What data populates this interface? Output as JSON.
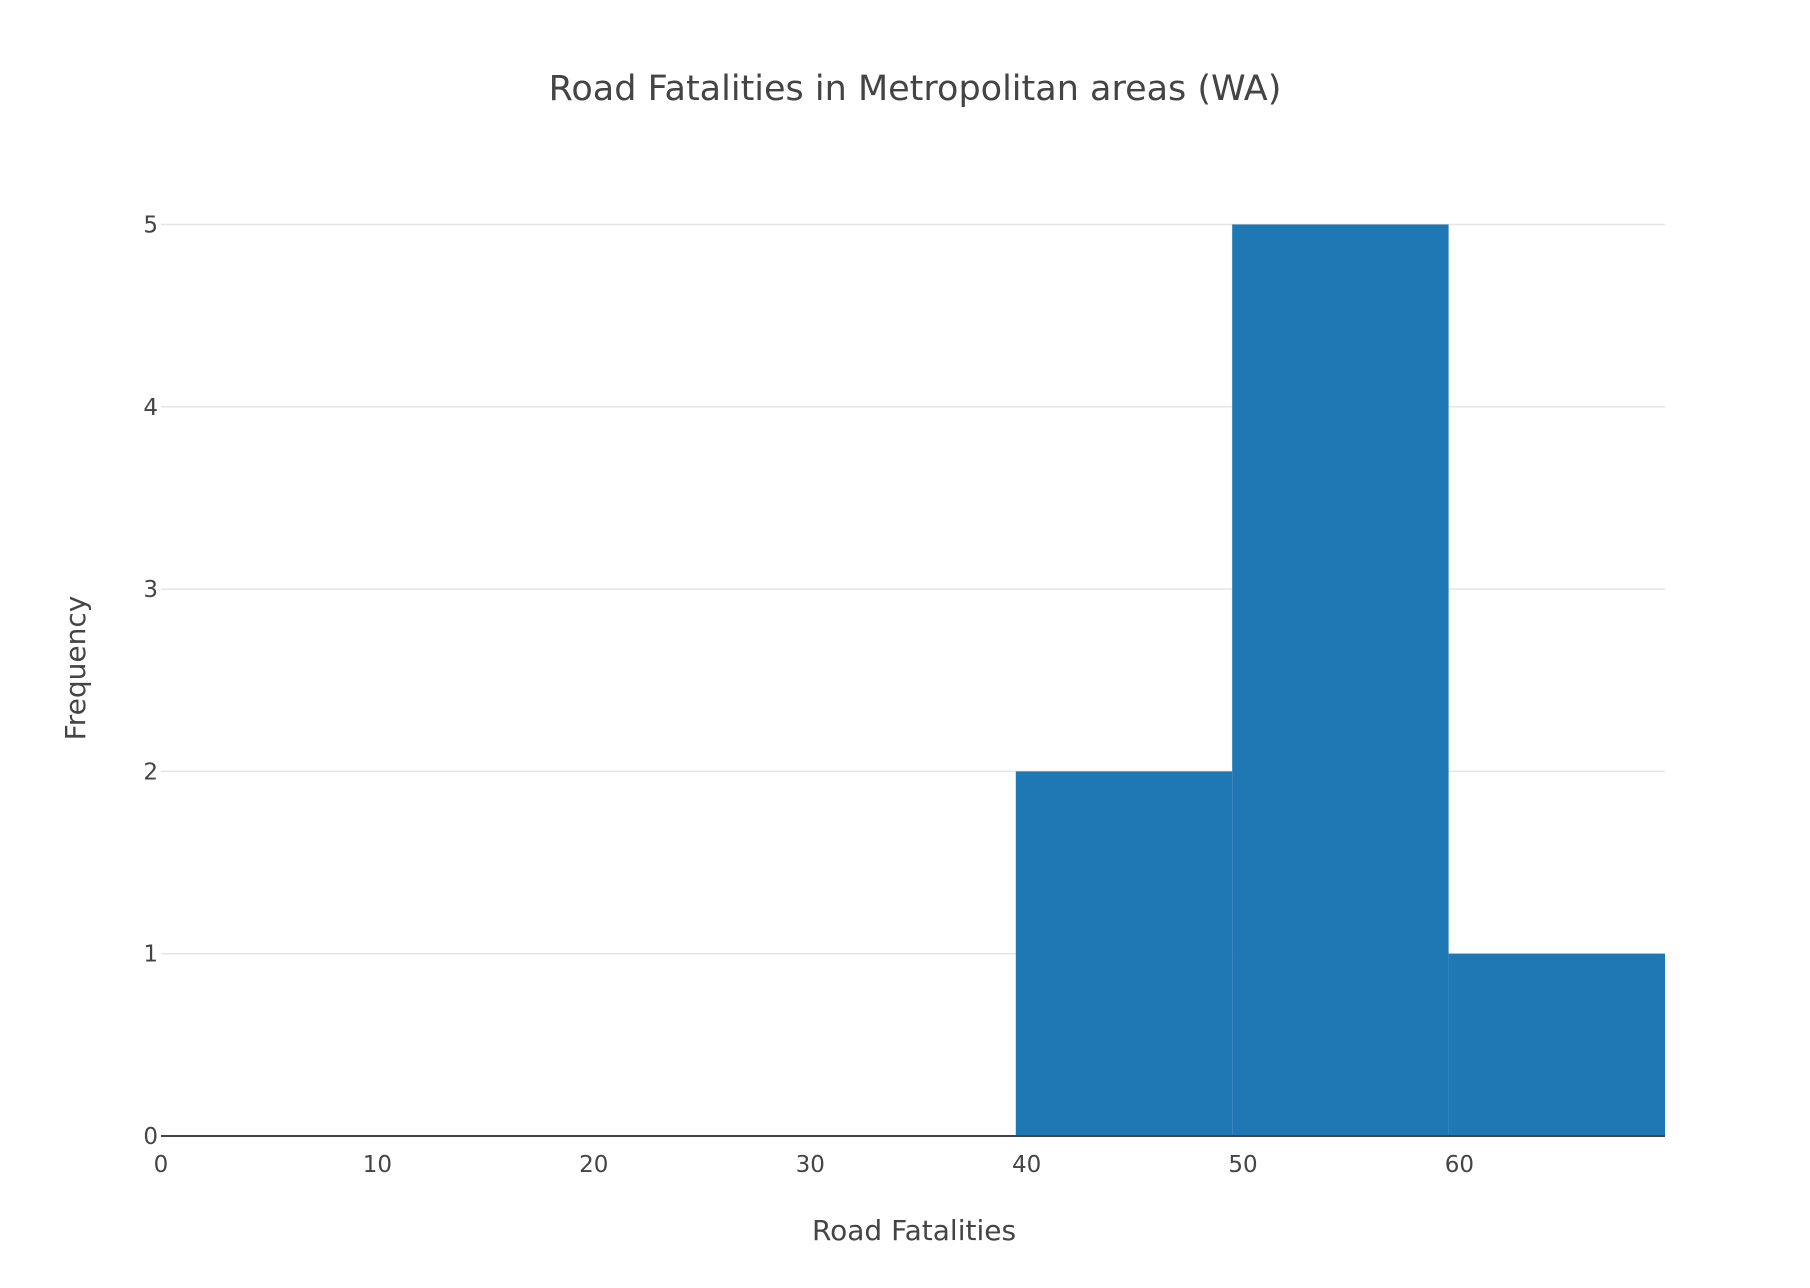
{
  "chart_data": {
    "type": "bar",
    "title": "Road Fatalities in Metropolitan areas (WA)",
    "xlabel": "Road Fatalities",
    "ylabel": "Frequency",
    "xlim": [
      0,
      69.5
    ],
    "ylim": [
      0,
      5.2
    ],
    "x_ticks": [
      0,
      10,
      20,
      30,
      40,
      50,
      60
    ],
    "y_ticks": [
      0,
      1,
      2,
      3,
      4,
      5
    ],
    "bins": [
      {
        "start": 39.5,
        "end": 49.5,
        "value": 2
      },
      {
        "start": 49.5,
        "end": 59.5,
        "value": 5
      },
      {
        "start": 59.5,
        "end": 69.5,
        "value": 1
      }
    ],
    "grid": true,
    "legend": "none"
  },
  "colors": {
    "bar": "#1f77b4",
    "grid": "#e5e5e5",
    "axis": "#444444"
  }
}
